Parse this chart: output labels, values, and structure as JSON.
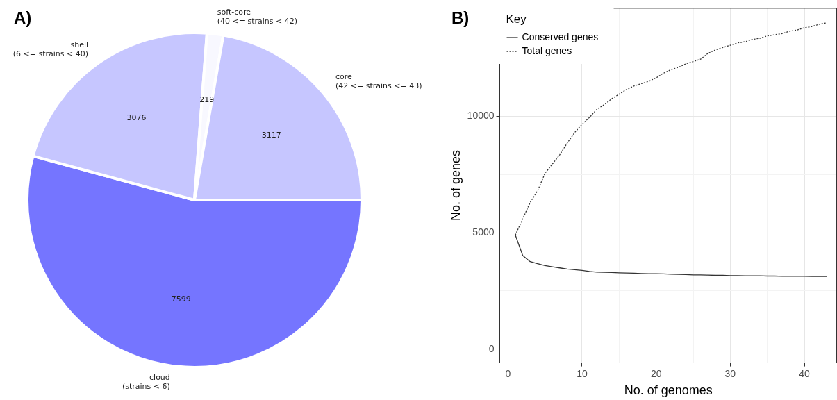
{
  "chart_data": [
    {
      "type": "pie",
      "title": "A)",
      "categories": [
        "cloud\n(strains < 6)",
        "shell\n(6 <= strains < 40)",
        "soft-core\n(40 <= strains < 42)",
        "core\n(42 <= strains <= 43)"
      ],
      "values": [
        7599,
        3076,
        219,
        3117
      ],
      "colors": [
        "#7575ff",
        "#c6c6ff",
        "#f8f8ff",
        "#c6c6ff"
      ],
      "data_labels": true,
      "legend": false
    },
    {
      "type": "line",
      "title": "B)",
      "xlabel": "No. of genomes",
      "ylabel": "No. of genes",
      "legend_title": "Key",
      "legend": "top left",
      "grid": true,
      "marker": "none",
      "x": [
        1,
        2,
        3,
        4,
        5,
        6,
        7,
        8,
        9,
        10,
        11,
        12,
        13,
        14,
        15,
        16,
        17,
        18,
        19,
        20,
        21,
        22,
        23,
        24,
        25,
        26,
        27,
        28,
        29,
        30,
        31,
        32,
        33,
        34,
        35,
        36,
        37,
        38,
        39,
        40,
        41,
        42,
        43
      ],
      "xlim": [
        -1.1,
        44.4
      ],
      "xticks": [
        0,
        {
          "value": 5,
          "label": null
        },
        10,
        {
          "value": 15,
          "label": null
        },
        20,
        {
          "value": 25,
          "label": null
        },
        30,
        {
          "value": 35,
          "label": null
        },
        40
      ],
      "ylim": [
        -590,
        14650
      ],
      "yticks": [
        0,
        {
          "value": 2500,
          "label": null
        },
        5000,
        {
          "value": 7500,
          "label": null
        },
        10000,
        {
          "value": 12500,
          "label": null
        }
      ],
      "series": [
        {
          "name": "Conserved genes",
          "color": "#333333",
          "line_style": "solid",
          "values": [
            4900,
            4020,
            3760,
            3670,
            3590,
            3540,
            3490,
            3440,
            3410,
            3380,
            3340,
            3310,
            3300,
            3290,
            3280,
            3270,
            3260,
            3250,
            3240,
            3240,
            3230,
            3220,
            3210,
            3200,
            3190,
            3190,
            3180,
            3170,
            3170,
            3160,
            3160,
            3150,
            3150,
            3150,
            3140,
            3140,
            3130,
            3130,
            3130,
            3130,
            3120,
            3120,
            3120
          ]
        },
        {
          "name": "Total genes",
          "color": "#333333",
          "line_style": "dotted",
          "values": [
            4900,
            5600,
            6300,
            6800,
            7550,
            7950,
            8350,
            8850,
            9300,
            9650,
            9950,
            10300,
            10500,
            10750,
            10950,
            11150,
            11300,
            11400,
            11500,
            11650,
            11850,
            12000,
            12100,
            12250,
            12350,
            12450,
            12700,
            12850,
            12950,
            13050,
            13150,
            13200,
            13300,
            13350,
            13450,
            13500,
            13550,
            13650,
            13700,
            13800,
            13850,
            13950,
            14010
          ]
        }
      ]
    }
  ]
}
